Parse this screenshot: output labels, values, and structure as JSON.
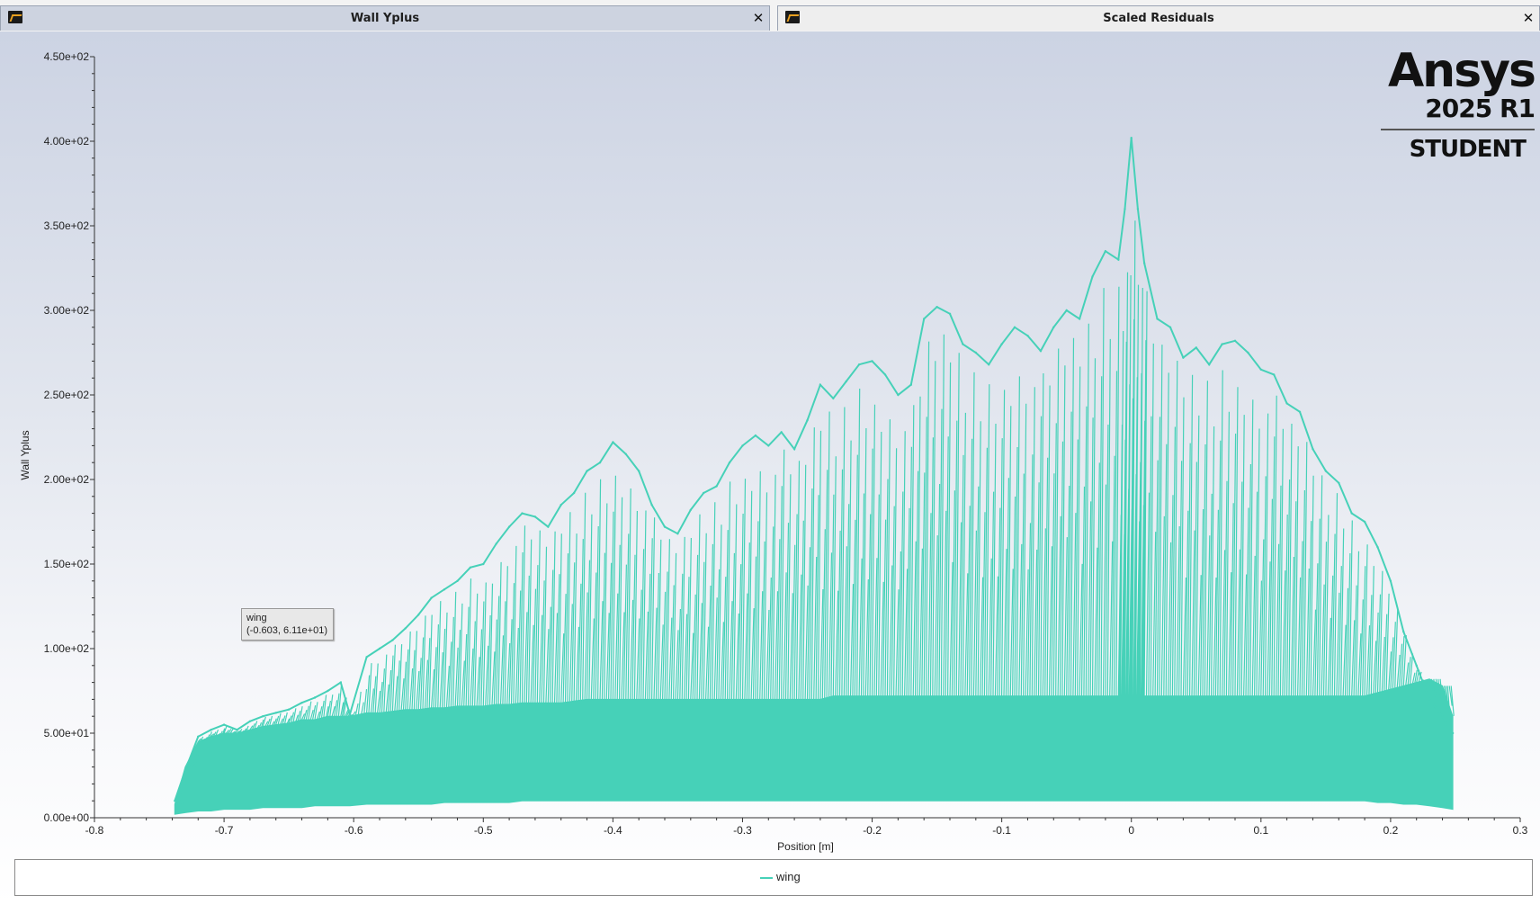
{
  "tabs": [
    {
      "title": "Wall Yplus",
      "active": true
    },
    {
      "title": "Scaled Residuals",
      "active": false
    }
  ],
  "logo": {
    "brand": "Ansys",
    "version": "2025 R1",
    "edition": "STUDENT"
  },
  "tooltip": {
    "series": "wing",
    "value": "(-0.603, 6.11e+01)"
  },
  "colors": {
    "series": "#46d1b8",
    "accent": "#e8a020"
  },
  "chart_data": {
    "type": "line",
    "title": "",
    "xlabel": "Position [m]",
    "ylabel": "Wall Yplus",
    "xlim": [
      -0.8,
      0.3
    ],
    "ylim": [
      0,
      450
    ],
    "xticks": [
      -0.8,
      -0.7,
      -0.6,
      -0.5,
      -0.4,
      -0.3,
      -0.2,
      -0.1,
      0,
      0.1,
      0.2,
      0.3
    ],
    "xtick_labels": [
      "-0.8",
      "-0.7",
      "-0.6",
      "-0.5",
      "-0.4",
      "-0.3",
      "-0.2",
      "-0.1",
      "0",
      "0.1",
      "0.2",
      "0.3"
    ],
    "yticks": [
      0,
      50,
      100,
      150,
      200,
      250,
      300,
      350,
      400,
      450
    ],
    "ytick_labels": [
      "0.00e+00",
      "5.00e+01",
      "1.00e+02",
      "1.50e+02",
      "2.00e+02",
      "2.50e+02",
      "3.00e+02",
      "3.50e+02",
      "4.00e+02",
      "4.50e+02"
    ],
    "grid": false,
    "legend_position": "bottom",
    "series": [
      {
        "name": "wing",
        "color": "#46d1b8",
        "x": [
          -0.738,
          -0.73,
          -0.72,
          -0.71,
          -0.7,
          -0.69,
          -0.68,
          -0.67,
          -0.66,
          -0.65,
          -0.64,
          -0.63,
          -0.62,
          -0.61,
          -0.603,
          -0.59,
          -0.58,
          -0.57,
          -0.56,
          -0.55,
          -0.54,
          -0.53,
          -0.52,
          -0.51,
          -0.5,
          -0.49,
          -0.48,
          -0.47,
          -0.46,
          -0.45,
          -0.44,
          -0.43,
          -0.42,
          -0.41,
          -0.4,
          -0.39,
          -0.38,
          -0.37,
          -0.36,
          -0.35,
          -0.34,
          -0.33,
          -0.32,
          -0.31,
          -0.3,
          -0.29,
          -0.28,
          -0.27,
          -0.26,
          -0.25,
          -0.24,
          -0.23,
          -0.22,
          -0.21,
          -0.2,
          -0.19,
          -0.18,
          -0.17,
          -0.16,
          -0.15,
          -0.14,
          -0.13,
          -0.12,
          -0.11,
          -0.1,
          -0.09,
          -0.08,
          -0.07,
          -0.06,
          -0.05,
          -0.04,
          -0.03,
          -0.02,
          -0.01,
          -0.005,
          0,
          0.005,
          0.01,
          0.02,
          0.03,
          0.04,
          0.05,
          0.06,
          0.07,
          0.08,
          0.09,
          0.1,
          0.11,
          0.12,
          0.13,
          0.14,
          0.15,
          0.16,
          0.17,
          0.18,
          0.19,
          0.2,
          0.21,
          0.22,
          0.23,
          0.24,
          0.248
        ],
        "y": [
          10,
          28,
          48,
          52,
          55,
          52,
          57,
          60,
          62,
          64,
          68,
          71,
          75,
          80,
          61.1,
          95,
          100,
          105,
          112,
          120,
          130,
          135,
          140,
          148,
          150,
          162,
          172,
          180,
          178,
          172,
          185,
          192,
          205,
          210,
          222,
          215,
          205,
          185,
          172,
          168,
          182,
          192,
          196,
          210,
          220,
          226,
          220,
          228,
          218,
          235,
          256,
          248,
          258,
          268,
          270,
          262,
          250,
          256,
          295,
          302,
          298,
          280,
          275,
          268,
          280,
          290,
          285,
          276,
          290,
          300,
          295,
          320,
          335,
          330,
          360,
          402,
          360,
          328,
          295,
          290,
          272,
          278,
          268,
          280,
          282,
          275,
          265,
          262,
          245,
          240,
          218,
          205,
          198,
          180,
          175,
          160,
          140,
          110,
          90,
          70,
          60,
          50
        ],
        "band_lower": [
          2,
          3,
          4,
          4,
          5,
          5,
          5,
          6,
          6,
          6,
          6,
          7,
          7,
          7,
          7,
          8,
          8,
          8,
          8,
          8,
          8,
          9,
          9,
          9,
          9,
          9,
          9,
          10,
          10,
          10,
          10,
          10,
          10,
          10,
          10,
          10,
          10,
          10,
          10,
          10,
          10,
          10,
          10,
          10,
          10,
          10,
          10,
          10,
          10,
          10,
          10,
          10,
          10,
          10,
          10,
          10,
          10,
          10,
          10,
          10,
          10,
          10,
          10,
          10,
          10,
          10,
          10,
          10,
          10,
          10,
          10,
          10,
          10,
          10,
          10,
          10,
          10,
          10,
          10,
          10,
          10,
          10,
          10,
          10,
          10,
          10,
          10,
          10,
          10,
          10,
          10,
          10,
          10,
          10,
          10,
          9,
          9,
          8,
          8,
          7,
          6,
          5
        ],
        "band_upper": [
          8,
          30,
          45,
          48,
          50,
          50,
          52,
          54,
          55,
          56,
          58,
          58,
          60,
          60,
          60,
          62,
          62,
          63,
          64,
          64,
          65,
          65,
          66,
          66,
          66,
          67,
          67,
          68,
          68,
          68,
          68,
          69,
          70,
          70,
          70,
          70,
          70,
          70,
          70,
          70,
          70,
          70,
          70,
          70,
          70,
          70,
          70,
          70,
          70,
          70,
          70,
          72,
          72,
          72,
          72,
          72,
          72,
          72,
          72,
          72,
          72,
          72,
          72,
          72,
          72,
          72,
          72,
          72,
          72,
          72,
          72,
          72,
          72,
          72,
          72,
          72,
          72,
          72,
          72,
          72,
          72,
          72,
          72,
          72,
          72,
          72,
          72,
          72,
          72,
          72,
          72,
          72,
          72,
          72,
          72,
          74,
          76,
          78,
          80,
          82,
          78,
          60
        ]
      }
    ]
  }
}
